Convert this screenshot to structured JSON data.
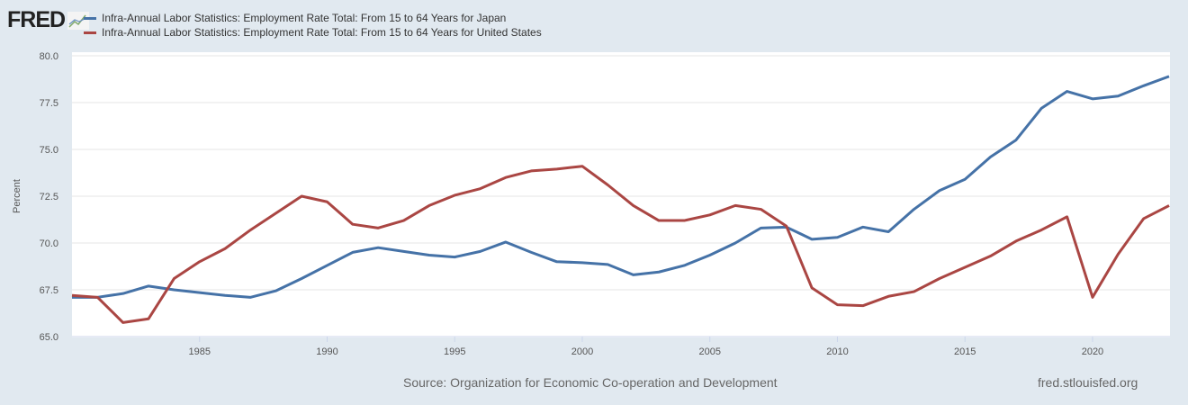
{
  "logo": "FRED",
  "source": "Source: Organization for Economic Co-operation and Development",
  "url": "fred.stlouisfed.org",
  "chart_data": {
    "type": "line",
    "title": "",
    "xlabel": "",
    "ylabel": "Percent",
    "ylim": [
      65,
      80
    ],
    "xlim": [
      1980,
      2023
    ],
    "yticks": [
      "65.0",
      "67.5",
      "70.0",
      "72.5",
      "75.0",
      "77.5",
      "80.0"
    ],
    "xticks": [
      "1985",
      "1990",
      "1995",
      "2000",
      "2005",
      "2010",
      "2015",
      "2020"
    ],
    "grid": true,
    "legend": "top-left",
    "x": [
      1980,
      1981,
      1982,
      1983,
      1984,
      1985,
      1986,
      1987,
      1988,
      1989,
      1990,
      1991,
      1992,
      1993,
      1994,
      1995,
      1996,
      1997,
      1998,
      1999,
      2000,
      2001,
      2002,
      2003,
      2004,
      2005,
      2006,
      2007,
      2008,
      2009,
      2010,
      2011,
      2012,
      2013,
      2014,
      2015,
      2016,
      2017,
      2018,
      2019,
      2020,
      2021,
      2022,
      2023
    ],
    "series": [
      {
        "name": "Infra-Annual Labor Statistics: Employment Rate Total: From 15 to 64 Years for Japan",
        "color": "#4572a7",
        "values": [
          67.1,
          67.1,
          67.3,
          67.7,
          67.5,
          67.35,
          67.2,
          67.1,
          67.45,
          68.1,
          68.8,
          69.5,
          69.75,
          69.55,
          69.35,
          69.25,
          69.55,
          70.05,
          69.5,
          69.0,
          68.95,
          68.85,
          68.3,
          68.45,
          68.8,
          69.35,
          70.0,
          70.8,
          70.85,
          70.2,
          70.3,
          70.85,
          70.6,
          71.8,
          72.8,
          73.4,
          74.6,
          75.5,
          77.2,
          78.1,
          77.7,
          77.85,
          78.4,
          78.9
        ]
      },
      {
        "name": "Infra-Annual Labor Statistics: Employment Rate Total: From 15 to 64 Years for United States",
        "color": "#aa4643",
        "values": [
          67.2,
          67.1,
          65.75,
          65.95,
          68.1,
          69.0,
          69.7,
          70.7,
          71.6,
          72.5,
          72.2,
          71.0,
          70.8,
          71.2,
          72.0,
          72.55,
          72.9,
          73.5,
          73.85,
          73.95,
          74.1,
          73.1,
          72.0,
          71.2,
          71.2,
          71.5,
          72.0,
          71.8,
          70.9,
          67.6,
          66.7,
          66.65,
          67.15,
          67.4,
          68.1,
          68.7,
          69.3,
          70.1,
          70.7,
          71.4,
          67.1,
          69.4,
          71.3,
          72.0
        ]
      }
    ]
  }
}
